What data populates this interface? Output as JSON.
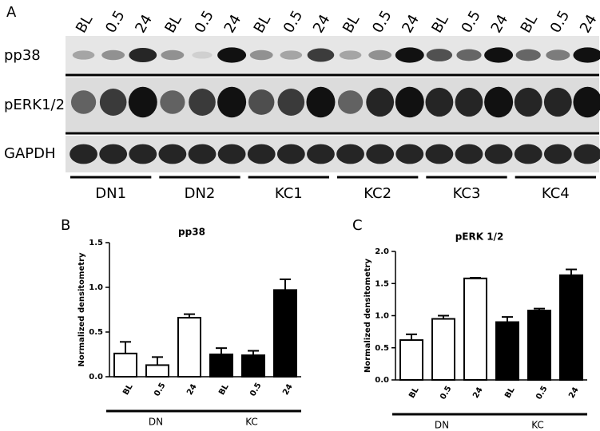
{
  "panel_labels": [
    "A",
    "B",
    "C"
  ],
  "blot": {
    "lane_labels": [
      "BL",
      "0.5",
      "24",
      "BL",
      "0.5",
      "24",
      "BL",
      "0.5",
      "24",
      "BL",
      "0.5",
      "24",
      "BL",
      "0.5",
      "24",
      "BL",
      "0.5",
      "24"
    ],
    "row_labels": [
      "pp38",
      "pERK1/2",
      "GAPDH"
    ],
    "group_labels": [
      "DN1",
      "DN2",
      "KC1",
      "KC2",
      "KC3",
      "KC4"
    ]
  },
  "chart_data": [
    {
      "type": "bar",
      "title": "pp38",
      "y_label": "Normalized densitometry",
      "categories": [
        "BL",
        "0.5",
        "24"
      ],
      "series": [
        {
          "name": "DN",
          "color": "#ffffff",
          "values": [
            0.26,
            0.13,
            0.66
          ],
          "errors": [
            0.13,
            0.09,
            0.04
          ]
        },
        {
          "name": "KC",
          "color": "#000000",
          "values": [
            0.25,
            0.24,
            0.97
          ],
          "errors": [
            0.07,
            0.05,
            0.12
          ]
        }
      ],
      "ylim": [
        0,
        1.5
      ],
      "yticks": [
        {
          "value": 0,
          "label": "0.0"
        },
        0.5,
        {
          "value": 1,
          "label": "1.0"
        },
        1.5
      ]
    },
    {
      "type": "bar",
      "title": "pERK 1/2",
      "y_label": "Normalized densitometry",
      "categories": [
        "BL",
        "0.5",
        "24"
      ],
      "series": [
        {
          "name": "DN",
          "color": "#ffffff",
          "values": [
            0.62,
            0.95,
            1.58
          ],
          "errors": [
            0.09,
            0.05,
            0.01
          ]
        },
        {
          "name": "KC",
          "color": "#000000",
          "values": [
            0.9,
            1.08,
            1.63
          ],
          "errors": [
            0.08,
            0.03,
            0.09
          ]
        }
      ],
      "ylim": [
        0,
        2
      ],
      "yticks": [
        {
          "value": 0,
          "label": "0.0"
        },
        0.5,
        {
          "value": 1,
          "label": "1.0"
        },
        1.5,
        {
          "value": 2,
          "label": "2.0"
        }
      ]
    }
  ]
}
